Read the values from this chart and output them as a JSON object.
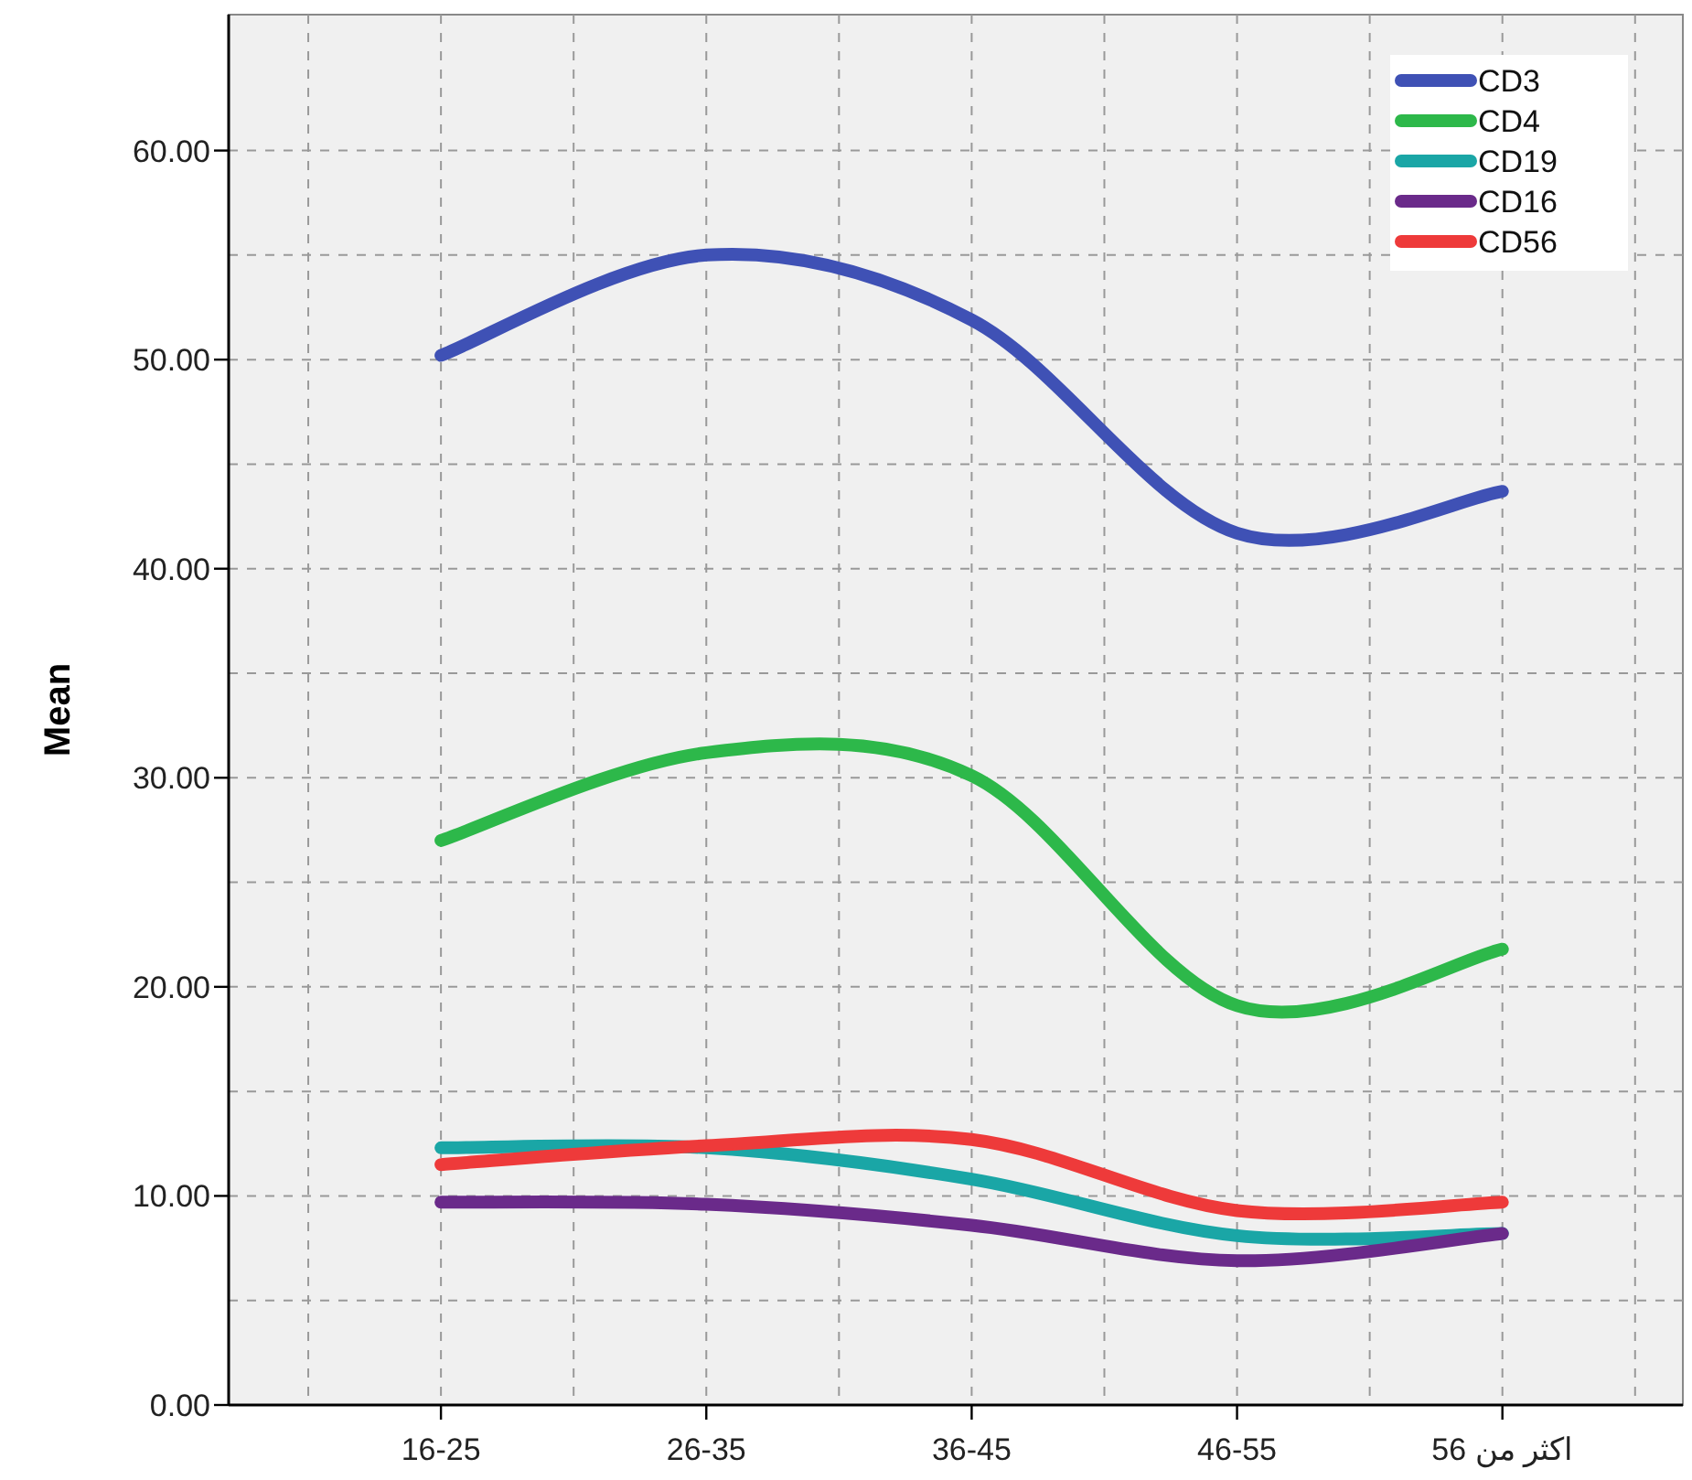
{
  "chart_data": {
    "type": "line",
    "ylabel": "Mean",
    "categories": [
      "16-25",
      "26-35",
      "36-45",
      "46-55",
      "اكثر من 56"
    ],
    "ylim": [
      0,
      66.5
    ],
    "yticks": [
      {
        "value": 0,
        "label": "0.00"
      },
      {
        "value": 10,
        "label": "10.00"
      },
      {
        "value": 20,
        "label": "20.00"
      },
      {
        "value": 30,
        "label": "30.00"
      },
      {
        "value": 40,
        "label": "40.00"
      },
      {
        "value": 50,
        "label": "50.00"
      },
      {
        "value": 60,
        "label": "60.00"
      }
    ],
    "grid": true,
    "legend": "top right",
    "marker": "none",
    "line_style": "solid",
    "series": [
      {
        "name": "CD3",
        "color": "#3f51b5",
        "values": [
          50.2,
          55.0,
          51.9,
          41.7,
          43.7
        ]
      },
      {
        "name": "CD4",
        "color": "#2db84a",
        "values": [
          27.0,
          31.2,
          30.1,
          19.1,
          21.8
        ]
      },
      {
        "name": "CD19",
        "color": "#1aa6a6",
        "values": [
          12.3,
          12.3,
          10.8,
          8.1,
          8.2
        ]
      },
      {
        "name": "CD16",
        "color": "#6a2a8a",
        "values": [
          9.7,
          9.6,
          8.6,
          6.9,
          8.2
        ]
      },
      {
        "name": "CD56",
        "color": "#ee3a3a",
        "values": [
          11.5,
          12.4,
          12.7,
          9.3,
          9.7
        ]
      }
    ]
  }
}
